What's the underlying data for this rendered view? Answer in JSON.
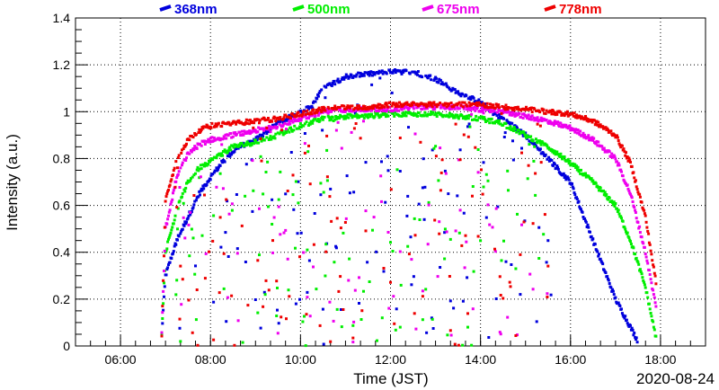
{
  "chart_data": {
    "type": "scatter",
    "title": "",
    "xlabel": "Time (JST)",
    "ylabel": "Intensity (a.u.)",
    "date_label": "2020-08-24",
    "xlim": [
      "05:00",
      "19:00"
    ],
    "ylim": [
      0,
      1.4
    ],
    "x_ticks": [
      "06:00",
      "08:00",
      "10:00",
      "12:00",
      "14:00",
      "16:00",
      "18:00"
    ],
    "y_ticks": [
      "0",
      "0.2",
      "0.4",
      "0.6",
      "0.8",
      "1",
      "1.2",
      "1.4"
    ],
    "grid": true,
    "legend_position": "top",
    "series": [
      {
        "name": "368nm",
        "color": "#0000dd",
        "envelope": [
          [
            "06:55",
            0.05
          ],
          [
            "07:00",
            0.3
          ],
          [
            "07:15",
            0.45
          ],
          [
            "07:30",
            0.55
          ],
          [
            "07:45",
            0.65
          ],
          [
            "08:00",
            0.72
          ],
          [
            "08:15",
            0.78
          ],
          [
            "08:30",
            0.83
          ],
          [
            "08:45",
            0.86
          ],
          [
            "09:00",
            0.88
          ],
          [
            "09:30",
            0.95
          ],
          [
            "10:00",
            1.0
          ],
          [
            "10:15",
            1.02
          ],
          [
            "10:30",
            1.1
          ],
          [
            "11:00",
            1.15
          ],
          [
            "11:30",
            1.16
          ],
          [
            "12:00",
            1.17
          ],
          [
            "12:30",
            1.17
          ],
          [
            "13:00",
            1.14
          ],
          [
            "13:30",
            1.08
          ],
          [
            "14:00",
            1.04
          ],
          [
            "14:15",
            1.0
          ],
          [
            "14:30",
            0.97
          ],
          [
            "15:00",
            0.9
          ],
          [
            "15:30",
            0.8
          ],
          [
            "16:00",
            0.7
          ],
          [
            "16:30",
            0.45
          ],
          [
            "17:00",
            0.2
          ],
          [
            "17:30",
            0.02
          ]
        ]
      },
      {
        "name": "500nm",
        "color": "#00ee00",
        "envelope": [
          [
            "06:55",
            0.05
          ],
          [
            "07:00",
            0.4
          ],
          [
            "07:15",
            0.58
          ],
          [
            "07:30",
            0.7
          ],
          [
            "07:45",
            0.76
          ],
          [
            "08:00",
            0.79
          ],
          [
            "08:15",
            0.82
          ],
          [
            "08:30",
            0.85
          ],
          [
            "08:45",
            0.86
          ],
          [
            "09:00",
            0.87
          ],
          [
            "09:30",
            0.9
          ],
          [
            "10:00",
            0.94
          ],
          [
            "10:30",
            0.97
          ],
          [
            "11:00",
            0.98
          ],
          [
            "11:30",
            0.98
          ],
          [
            "12:00",
            0.99
          ],
          [
            "12:30",
            0.99
          ],
          [
            "13:00",
            0.99
          ],
          [
            "13:30",
            0.98
          ],
          [
            "14:00",
            0.97
          ],
          [
            "14:30",
            0.95
          ],
          [
            "15:00",
            0.9
          ],
          [
            "15:30",
            0.85
          ],
          [
            "16:00",
            0.78
          ],
          [
            "16:30",
            0.7
          ],
          [
            "17:00",
            0.6
          ],
          [
            "17:20",
            0.45
          ],
          [
            "17:40",
            0.25
          ],
          [
            "17:55",
            0.02
          ]
        ]
      },
      {
        "name": "675nm",
        "color": "#ee00ee",
        "envelope": [
          [
            "06:55",
            0.05
          ],
          [
            "07:00",
            0.5
          ],
          [
            "07:15",
            0.72
          ],
          [
            "07:30",
            0.82
          ],
          [
            "07:45",
            0.86
          ],
          [
            "08:00",
            0.88
          ],
          [
            "08:30",
            0.9
          ],
          [
            "09:00",
            0.92
          ],
          [
            "09:30",
            0.94
          ],
          [
            "10:00",
            0.97
          ],
          [
            "10:30",
            1.0
          ],
          [
            "11:00",
            1.01
          ],
          [
            "11:30",
            1.01
          ],
          [
            "12:00",
            1.01
          ],
          [
            "12:30",
            1.02
          ],
          [
            "13:00",
            1.02
          ],
          [
            "13:30",
            1.02
          ],
          [
            "14:00",
            1.01
          ],
          [
            "14:30",
            1.0
          ],
          [
            "15:00",
            0.98
          ],
          [
            "15:30",
            0.96
          ],
          [
            "16:00",
            0.93
          ],
          [
            "16:30",
            0.88
          ],
          [
            "17:00",
            0.8
          ],
          [
            "17:20",
            0.65
          ],
          [
            "17:40",
            0.4
          ],
          [
            "17:55",
            0.15
          ]
        ]
      },
      {
        "name": "778nm",
        "color": "#ee0000",
        "envelope": [
          [
            "06:55",
            0.05
          ],
          [
            "07:00",
            0.62
          ],
          [
            "07:15",
            0.8
          ],
          [
            "07:30",
            0.88
          ],
          [
            "07:45",
            0.92
          ],
          [
            "08:00",
            0.94
          ],
          [
            "08:30",
            0.95
          ],
          [
            "09:00",
            0.96
          ],
          [
            "09:30",
            0.97
          ],
          [
            "10:00",
            0.99
          ],
          [
            "10:30",
            1.01
          ],
          [
            "11:00",
            1.02
          ],
          [
            "11:30",
            1.02
          ],
          [
            "12:00",
            1.03
          ],
          [
            "12:30",
            1.03
          ],
          [
            "13:00",
            1.03
          ],
          [
            "13:30",
            1.03
          ],
          [
            "14:00",
            1.03
          ],
          [
            "14:30",
            1.02
          ],
          [
            "15:00",
            1.01
          ],
          [
            "15:30",
            1.0
          ],
          [
            "16:00",
            0.99
          ],
          [
            "16:30",
            0.96
          ],
          [
            "17:00",
            0.9
          ],
          [
            "17:20",
            0.78
          ],
          [
            "17:40",
            0.55
          ],
          [
            "17:55",
            0.25
          ]
        ]
      }
    ]
  }
}
